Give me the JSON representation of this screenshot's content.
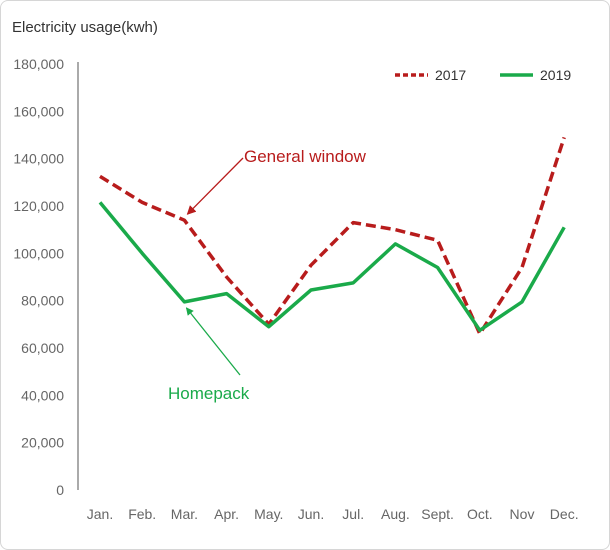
{
  "chart_data": {
    "type": "line",
    "ylabel": "Electricity usage(kwh)",
    "ylim": [
      0,
      180000
    ],
    "yticks": [
      0,
      20000,
      40000,
      60000,
      80000,
      100000,
      120000,
      140000,
      160000,
      180000
    ],
    "ytick_labels": [
      "0",
      "20,000",
      "40,000",
      "60,000",
      "80,000",
      "100,000",
      "120,000",
      "140,000",
      "160,000",
      "180,000"
    ],
    "categories": [
      "Jan.",
      "Feb.",
      "Mar.",
      "Apr.",
      "May.",
      "Jun.",
      "Jul.",
      "Aug.",
      "Sept.",
      "Oct.",
      "Nov",
      "Dec."
    ],
    "series": [
      {
        "name": "2017",
        "color": "#b81c1c",
        "style": "dashed",
        "values": [
          132500,
          121500,
          114000,
          90000,
          70000,
          95000,
          113000,
          110000,
          105500,
          66000,
          94000,
          149000
        ]
      },
      {
        "name": "2019",
        "color": "#1aaa4a",
        "style": "solid",
        "values": [
          121500,
          100000,
          79500,
          83000,
          69000,
          84500,
          87500,
          104000,
          94000,
          67500,
          79500,
          111000
        ]
      }
    ],
    "legend_position": "top-right",
    "grid": false,
    "annotations": [
      {
        "text": "General window",
        "color": "#b81c1c",
        "target_category": "Mar.",
        "target_value": 114000
      },
      {
        "text": "Homepack",
        "color": "#1aaa4a",
        "target_category": "Mar.",
        "target_value": 79500
      }
    ]
  }
}
